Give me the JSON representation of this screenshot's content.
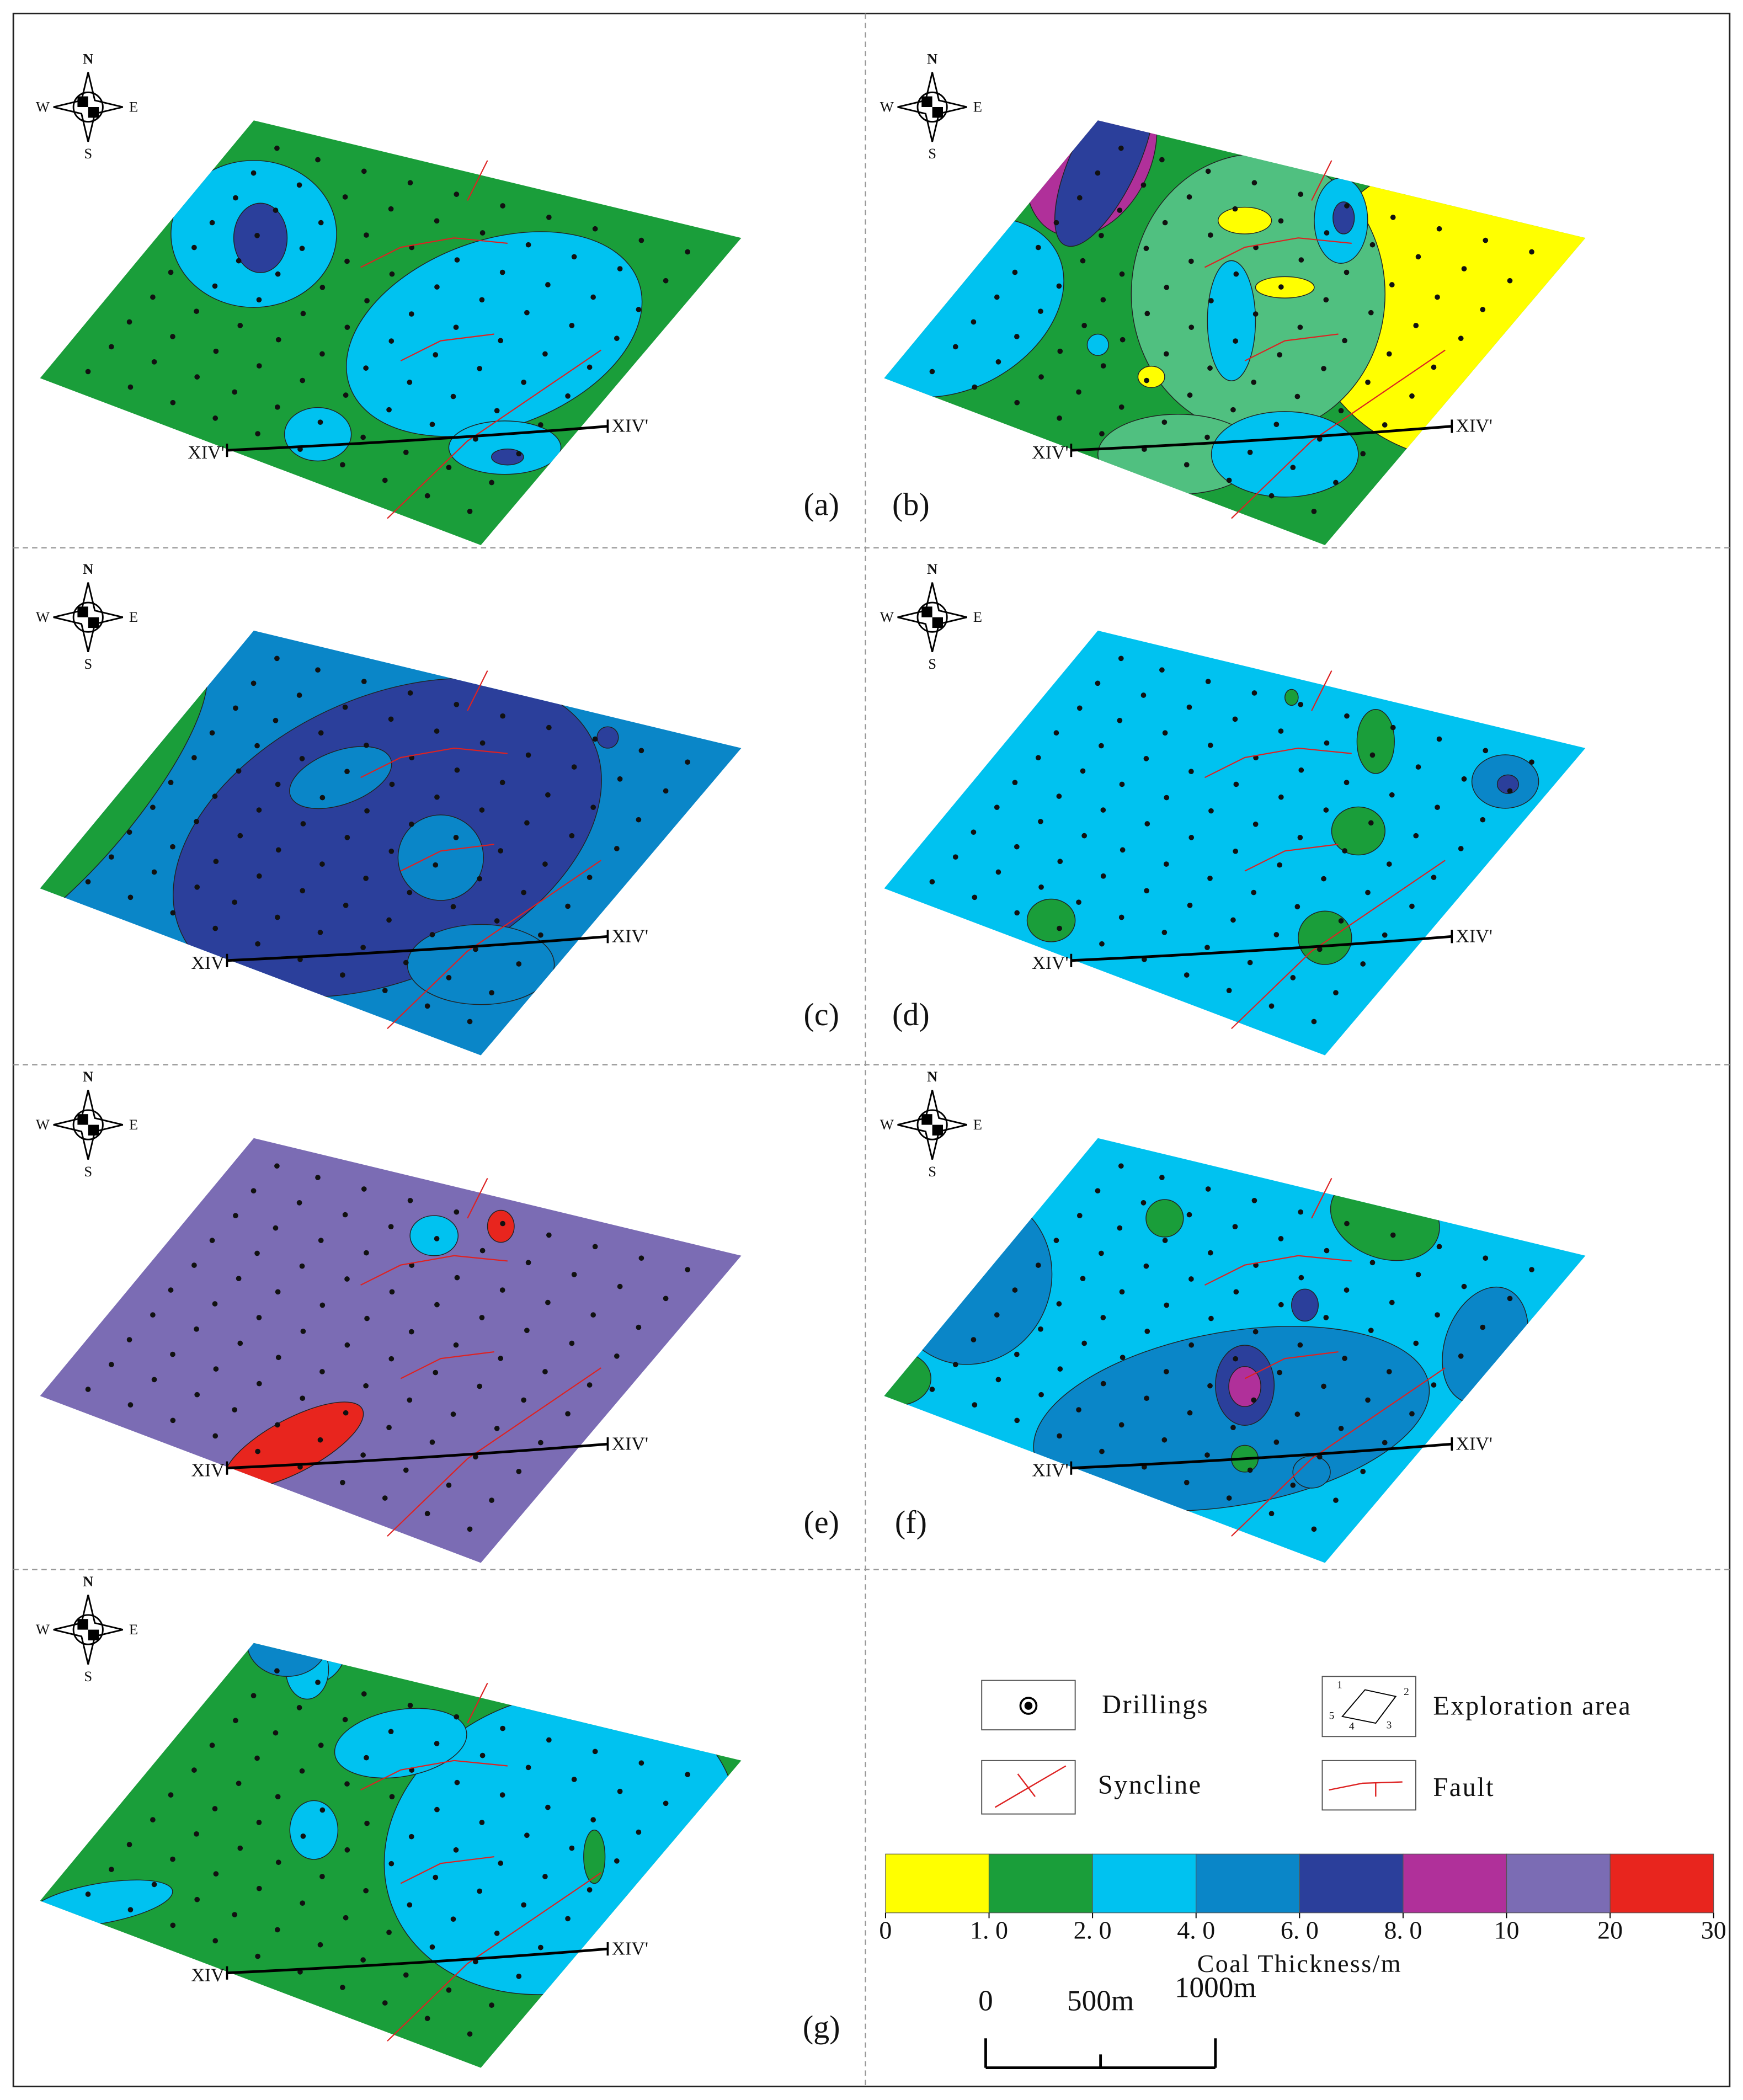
{
  "panels": [
    {
      "label": "(a)",
      "section": {
        "start": "XIV'",
        "end": "XIV'"
      }
    },
    {
      "label": "(b)",
      "section": {
        "start": "XIV'",
        "end": "XIV'"
      }
    },
    {
      "label": "(c)",
      "section": {
        "start": "XIV",
        "end": "XIV'"
      }
    },
    {
      "label": "(d)",
      "section": {
        "start": "XIV'",
        "end": "XIV'"
      }
    },
    {
      "label": "(e)",
      "section": {
        "start": "XIV",
        "end": "XIV'"
      }
    },
    {
      "label": "(f)",
      "section": {
        "start": "XIV'",
        "end": "XIV'"
      }
    },
    {
      "label": "(g)",
      "section": {
        "start": "XIV",
        "end": "XIV'"
      }
    }
  ],
  "compass": {
    "n": "N",
    "s": "S",
    "w": "W",
    "e": "E"
  },
  "legend": {
    "items": [
      "Drillings",
      "Exploration area",
      "Syncline",
      "Fault"
    ],
    "exploration_corners": [
      "1",
      "2",
      "3",
      "4",
      "5"
    ],
    "colorbar": {
      "title": "Coal Thickness/m",
      "colors": [
        "#ffff00",
        "#1a9e3a",
        "#00c2f0",
        "#0a86c8",
        "#2b3f9b",
        "#b0309a",
        "#7b6cb4",
        "#e8251e"
      ],
      "ticks": [
        {
          "value": 0,
          "label": "0"
        },
        {
          "value": 1,
          "label": "1. 0"
        },
        {
          "value": 2,
          "label": "2. 0"
        },
        {
          "value": 4,
          "label": "4. 0"
        },
        {
          "value": 6,
          "label": "6. 0"
        },
        {
          "value": 8,
          "label": "8. 0"
        },
        10,
        20,
        30
      ]
    },
    "scale_bar": {
      "ticks": [
        0,
        {
          "value": 500,
          "label": "500m"
        },
        {
          "value": 1000,
          "label": "1000m"
        }
      ]
    }
  }
}
